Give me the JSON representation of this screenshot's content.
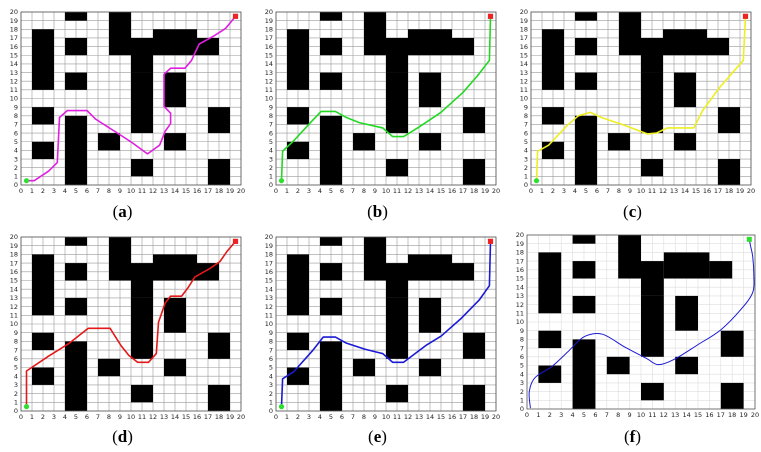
{
  "panels": [
    {
      "label": "a",
      "caption_open": "(",
      "caption_close": ")",
      "path_color": "#e020e0",
      "smooth": false,
      "show_ticks": true,
      "path": [
        [
          0.5,
          0.5
        ],
        [
          1.2,
          0.5
        ],
        [
          2.5,
          1.6
        ],
        [
          3.3,
          2.6
        ],
        [
          3.5,
          7.8
        ],
        [
          4.2,
          8.6
        ],
        [
          6,
          8.6
        ],
        [
          6.8,
          7.6
        ],
        [
          8.4,
          6.3
        ],
        [
          10.1,
          4.9
        ],
        [
          11.5,
          3.6
        ],
        [
          12.6,
          4.6
        ],
        [
          13.1,
          6.2
        ],
        [
          13.6,
          7.1
        ],
        [
          13.6,
          8.3
        ],
        [
          13,
          9.1
        ],
        [
          13,
          12.8
        ],
        [
          13.6,
          13.5
        ],
        [
          14.9,
          13.5
        ],
        [
          15.5,
          14.4
        ],
        [
          15.9,
          15.5
        ],
        [
          16.2,
          16.3
        ],
        [
          17.5,
          17.2
        ],
        [
          18.6,
          18.1
        ],
        [
          19.5,
          19.5
        ]
      ]
    },
    {
      "label": "b",
      "caption_open": "(",
      "caption_close": ")",
      "path_color": "#22d822",
      "smooth": false,
      "show_ticks": true,
      "path": [
        [
          0.5,
          0.5
        ],
        [
          0.6,
          3.9
        ],
        [
          1.6,
          5.1
        ],
        [
          3.2,
          7.3
        ],
        [
          4.1,
          8.5
        ],
        [
          5.4,
          8.5
        ],
        [
          6.4,
          7.8
        ],
        [
          7.6,
          7.2
        ],
        [
          9.7,
          6.6
        ],
        [
          10.6,
          5.6
        ],
        [
          11.6,
          5.6
        ],
        [
          13,
          6.7
        ],
        [
          15,
          8.4
        ],
        [
          17,
          10.7
        ],
        [
          18.3,
          12.6
        ],
        [
          19.4,
          14.4
        ],
        [
          19.5,
          19.5
        ]
      ]
    },
    {
      "label": "c",
      "caption_open": "(",
      "caption_close": ")",
      "path_color": "#eeee22",
      "smooth": false,
      "show_ticks": true,
      "path": [
        [
          0.5,
          0.5
        ],
        [
          0.6,
          3.9
        ],
        [
          1.6,
          4.6
        ],
        [
          3.3,
          6.9
        ],
        [
          4.3,
          8
        ],
        [
          5.4,
          8.4
        ],
        [
          6.4,
          7.8
        ],
        [
          8.3,
          7
        ],
        [
          10.6,
          5.9
        ],
        [
          11.4,
          6
        ],
        [
          12.4,
          6.6
        ],
        [
          14.8,
          6.6
        ],
        [
          15.6,
          8.6
        ],
        [
          17.1,
          11.2
        ],
        [
          18.4,
          13.1
        ],
        [
          19.3,
          14.4
        ],
        [
          19.5,
          19.5
        ]
      ]
    },
    {
      "label": "d",
      "caption_open": "(",
      "caption_close": ")",
      "path_color": "#e41818",
      "smooth": false,
      "show_ticks": true,
      "path": [
        [
          0.5,
          0.5
        ],
        [
          0.5,
          4.6
        ],
        [
          2.5,
          6.3
        ],
        [
          4.4,
          7.8
        ],
        [
          6.1,
          9.5
        ],
        [
          8.1,
          9.5
        ],
        [
          8.6,
          8.5
        ],
        [
          9.1,
          7.5
        ],
        [
          9.8,
          6.4
        ],
        [
          10.6,
          5.6
        ],
        [
          11.6,
          5.6
        ],
        [
          12.3,
          6.6
        ],
        [
          12.5,
          10.2
        ],
        [
          13.1,
          12.4
        ],
        [
          13.6,
          13.2
        ],
        [
          14.6,
          13.2
        ],
        [
          15.2,
          14.2
        ],
        [
          15.8,
          15.4
        ],
        [
          17.2,
          16.4
        ],
        [
          18.1,
          17.2
        ],
        [
          18.7,
          18.3
        ],
        [
          19.5,
          19.5
        ]
      ]
    },
    {
      "label": "e",
      "caption_open": "(",
      "caption_close": ")",
      "path_color": "#1a1ad6",
      "smooth": false,
      "show_ticks": true,
      "path": [
        [
          0.5,
          0.5
        ],
        [
          0.6,
          3.7
        ],
        [
          1.6,
          4.5
        ],
        [
          3.3,
          6.9
        ],
        [
          4.3,
          8.5
        ],
        [
          5.4,
          8.5
        ],
        [
          6.4,
          7.8
        ],
        [
          8.1,
          7.1
        ],
        [
          9.7,
          6.6
        ],
        [
          10.6,
          5.6
        ],
        [
          11.6,
          5.6
        ],
        [
          13.7,
          7.6
        ],
        [
          15,
          8.6
        ],
        [
          16.8,
          10.6
        ],
        [
          18.5,
          12.8
        ],
        [
          19.4,
          14.4
        ],
        [
          19.5,
          19.5
        ]
      ]
    },
    {
      "label": "f",
      "caption_open": "(",
      "caption_close": ")",
      "path_color": "#1a1ad6",
      "smooth": true,
      "show_ticks": false,
      "path": [
        [
          0.3,
          0.1
        ],
        [
          0.2,
          2
        ],
        [
          0.7,
          3.6
        ],
        [
          2.2,
          4.9
        ],
        [
          3.6,
          6.6
        ],
        [
          5,
          8.3
        ],
        [
          6.6,
          8.6
        ],
        [
          8.6,
          7.1
        ],
        [
          10.5,
          5.8
        ],
        [
          11.5,
          5.1
        ],
        [
          12.9,
          5.7
        ],
        [
          15,
          7.4
        ],
        [
          17,
          9.1
        ],
        [
          18.8,
          11.5
        ],
        [
          19.8,
          13.4
        ],
        [
          19.9,
          15.3
        ],
        [
          19.8,
          17.5
        ],
        [
          19.6,
          18.8
        ],
        [
          19.5,
          19.5
        ]
      ]
    }
  ],
  "obstacles": [
    [
      4,
      19,
      2,
      1
    ],
    [
      1,
      11,
      2,
      7
    ],
    [
      4,
      15,
      2,
      2
    ],
    [
      4,
      11,
      2,
      2
    ],
    [
      8,
      15,
      2,
      5
    ],
    [
      10,
      13,
      2,
      4
    ],
    [
      10,
      6,
      2,
      7
    ],
    [
      12,
      15,
      4,
      3
    ],
    [
      13,
      9,
      2,
      4
    ],
    [
      16,
      15,
      2,
      2
    ],
    [
      1,
      7,
      2,
      2
    ],
    [
      1,
      3,
      2,
      2
    ],
    [
      4,
      0,
      2,
      8
    ],
    [
      7,
      4,
      2,
      2
    ],
    [
      10,
      1,
      2,
      2
    ],
    [
      13,
      4,
      2,
      2
    ],
    [
      17,
      6,
      2,
      3
    ],
    [
      17,
      0,
      2,
      3
    ]
  ],
  "ticks": [
    "0",
    "1",
    "2",
    "3",
    "4",
    "5",
    "6",
    "7",
    "8",
    "9",
    "10",
    "11",
    "12",
    "13",
    "14",
    "15",
    "16",
    "17",
    "18",
    "19",
    "20"
  ],
  "grid_size": 20,
  "start_color": "#2ee02e",
  "goal_color": "#ee2222",
  "map_f_has_ticks": false
}
